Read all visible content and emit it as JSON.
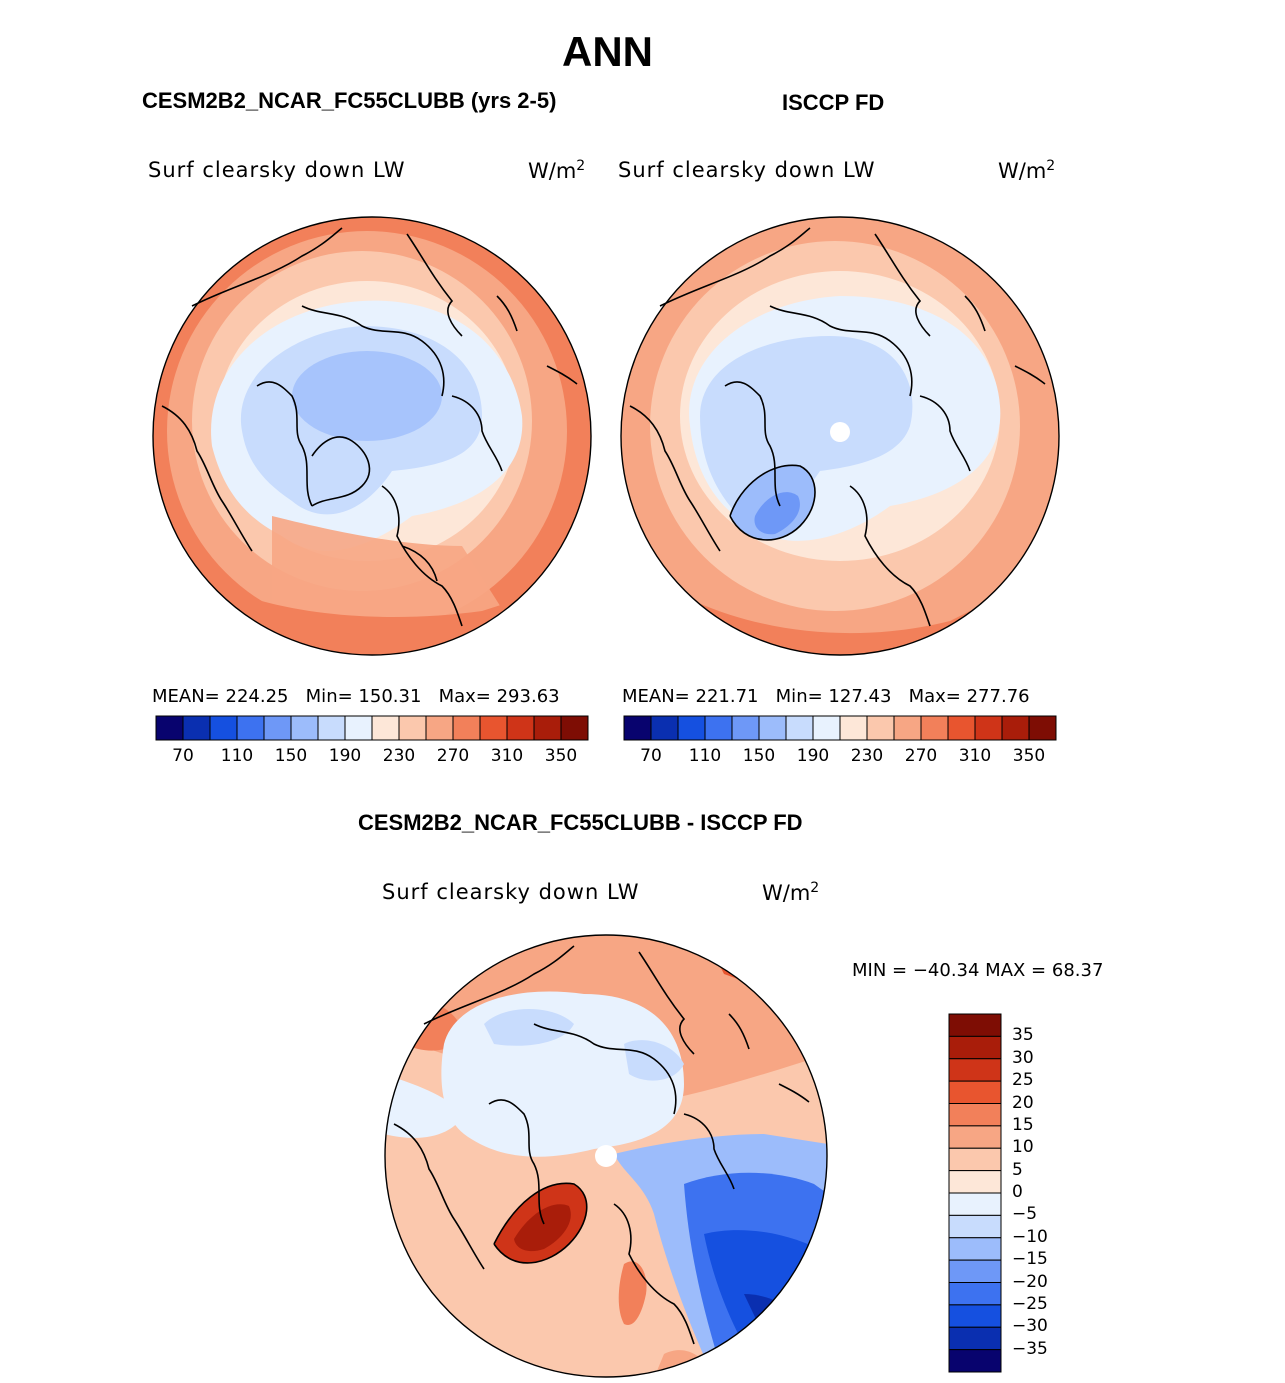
{
  "figure": {
    "title": "ANN"
  },
  "panels": [
    {
      "title": "CESM2B2_NCAR_FC55CLUBB (yrs 2-5)",
      "variable": "Surf clearsky down LW",
      "units_base": "W/m",
      "units_exp": "2",
      "stats": {
        "mean_label": "MEAN=",
        "mean": "224.25",
        "min_label": "Min=",
        "min": "150.31",
        "max_label": "Max=",
        "max": "293.63"
      }
    },
    {
      "title": "ISCCP FD",
      "variable": "Surf clearsky down LW",
      "units_base": "W/m",
      "units_exp": "2",
      "stats": {
        "mean_label": "MEAN=",
        "mean": "221.71",
        "min_label": "Min=",
        "min": "127.43",
        "max_label": "Max=",
        "max": "277.76"
      }
    }
  ],
  "diff_panel": {
    "title": "CESM2B2_NCAR_FC55CLUBB - ISCCP FD",
    "variable": "Surf clearsky down LW",
    "units_base": "W/m",
    "units_exp": "2",
    "minmax": "MIN = −40.34 MAX =   68.37"
  },
  "colorbar_main": {
    "colors": [
      "#08036e",
      "#0a2fb0",
      "#1550e0",
      "#3d72f0",
      "#6e98f7",
      "#9cbcfb",
      "#c8dcfd",
      "#e8f2fe",
      "#fde7d8",
      "#fbc8ad",
      "#f7a684",
      "#f2805a",
      "#e8552f",
      "#cf3418",
      "#a91d0a",
      "#7e0d04"
    ],
    "tick_labels": [
      "70",
      "110",
      "150",
      "190",
      "230",
      "270",
      "310",
      "350"
    ]
  },
  "colorbar_diff": {
    "colors": [
      "#7e0d04",
      "#a91d0a",
      "#cf3418",
      "#e8552f",
      "#f2805a",
      "#f7a684",
      "#fbc8ad",
      "#fde7d8",
      "#e8f2fe",
      "#c8dcfd",
      "#9cbcfb",
      "#6e98f7",
      "#3d72f0",
      "#1550e0",
      "#0a2fb0",
      "#08036e"
    ],
    "tick_labels": [
      "35",
      "30",
      "25",
      "20",
      "15",
      "10",
      "5",
      "0",
      "−5",
      "−10",
      "−15",
      "−20",
      "−25",
      "−30",
      "−35"
    ]
  },
  "map_colors": {
    "land_line": "#000000",
    "warm_outer": "#f2805a",
    "warm_mid": "#f7a684",
    "warm_light": "#fbc8ad",
    "warm_pale": "#fde7d8",
    "cool_pale": "#e8f2fe",
    "cool_light": "#c8dcfd",
    "cool_mid": "#9cbcfb",
    "cool_strong": "#6e98f7",
    "cool_deep": "#3d72f0"
  }
}
